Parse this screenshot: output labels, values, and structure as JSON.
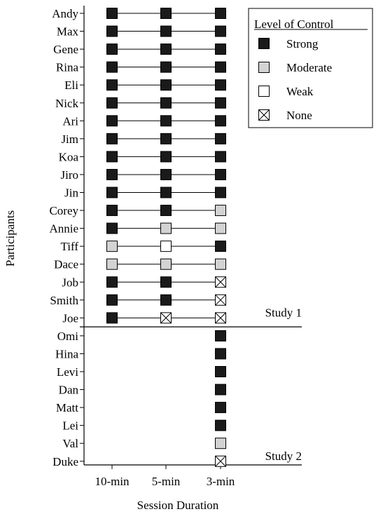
{
  "chart_data": {
    "type": "scatter",
    "title": "",
    "xlabel": "Session Duration",
    "ylabel": "Participants",
    "categories": [
      "10-min",
      "5-min",
      "3-min"
    ],
    "legend": {
      "title": "Level of Control",
      "position": "top-right",
      "entries": [
        {
          "level": "strong",
          "label": "Strong"
        },
        {
          "level": "moderate",
          "label": "Moderate"
        },
        {
          "level": "weak",
          "label": "Weak"
        },
        {
          "level": "none",
          "label": "None"
        }
      ]
    },
    "level_colors": {
      "strong": "#1a1a1a",
      "moderate": "#d3d3d3",
      "weak": "#ffffff",
      "none": "#ffffff"
    },
    "studies": [
      {
        "label": "Study 1",
        "participants": [
          {
            "name": "Andy",
            "levels": [
              "strong",
              "strong",
              "strong"
            ]
          },
          {
            "name": "Max",
            "levels": [
              "strong",
              "strong",
              "strong"
            ]
          },
          {
            "name": "Gene",
            "levels": [
              "strong",
              "strong",
              "strong"
            ]
          },
          {
            "name": "Rina",
            "levels": [
              "strong",
              "strong",
              "strong"
            ]
          },
          {
            "name": "Eli",
            "levels": [
              "strong",
              "strong",
              "strong"
            ]
          },
          {
            "name": "Nick",
            "levels": [
              "strong",
              "strong",
              "strong"
            ]
          },
          {
            "name": "Ari",
            "levels": [
              "strong",
              "strong",
              "strong"
            ]
          },
          {
            "name": "Jim",
            "levels": [
              "strong",
              "strong",
              "strong"
            ]
          },
          {
            "name": "Koa",
            "levels": [
              "strong",
              "strong",
              "strong"
            ]
          },
          {
            "name": "Jiro",
            "levels": [
              "strong",
              "strong",
              "strong"
            ]
          },
          {
            "name": "Jin",
            "levels": [
              "strong",
              "strong",
              "strong"
            ]
          },
          {
            "name": "Corey",
            "levels": [
              "strong",
              "strong",
              "moderate"
            ]
          },
          {
            "name": "Annie",
            "levels": [
              "strong",
              "moderate",
              "moderate"
            ]
          },
          {
            "name": "Tiff",
            "levels": [
              "moderate",
              "weak",
              "strong"
            ]
          },
          {
            "name": "Dace",
            "levels": [
              "moderate",
              "moderate",
              "moderate"
            ]
          },
          {
            "name": "Job",
            "levels": [
              "strong",
              "strong",
              "none"
            ]
          },
          {
            "name": "Smith",
            "levels": [
              "strong",
              "strong",
              "none"
            ]
          },
          {
            "name": "Joe",
            "levels": [
              "strong",
              "none",
              "none"
            ]
          }
        ]
      },
      {
        "label": "Study 2",
        "participants": [
          {
            "name": "Omi",
            "levels": [
              null,
              null,
              "strong"
            ]
          },
          {
            "name": "Hina",
            "levels": [
              null,
              null,
              "strong"
            ]
          },
          {
            "name": "Levi",
            "levels": [
              null,
              null,
              "strong"
            ]
          },
          {
            "name": "Dan",
            "levels": [
              null,
              null,
              "strong"
            ]
          },
          {
            "name": "Matt",
            "levels": [
              null,
              null,
              "strong"
            ]
          },
          {
            "name": "Lei",
            "levels": [
              null,
              null,
              "strong"
            ]
          },
          {
            "name": "Val",
            "levels": [
              null,
              null,
              "moderate"
            ]
          },
          {
            "name": "Duke",
            "levels": [
              null,
              null,
              "none"
            ]
          }
        ]
      }
    ]
  }
}
